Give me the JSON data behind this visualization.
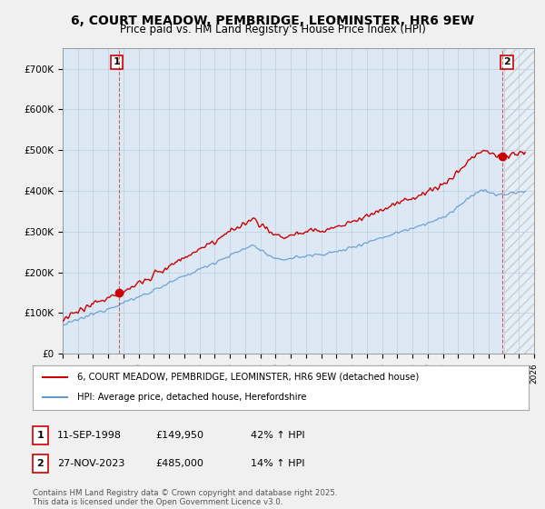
{
  "title": "6, COURT MEADOW, PEMBRIDGE, LEOMINSTER, HR6 9EW",
  "subtitle": "Price paid vs. HM Land Registry's House Price Index (HPI)",
  "legend_label1": "6, COURT MEADOW, PEMBRIDGE, LEOMINSTER, HR6 9EW (detached house)",
  "legend_label2": "HPI: Average price, detached house, Herefordshire",
  "annotation1_date": "11-SEP-1998",
  "annotation1_price": "£149,950",
  "annotation1_hpi": "42% ↑ HPI",
  "annotation2_date": "27-NOV-2023",
  "annotation2_price": "£485,000",
  "annotation2_hpi": "14% ↑ HPI",
  "footer": "Contains HM Land Registry data © Crown copyright and database right 2025.\nThis data is licensed under the Open Government Licence v3.0.",
  "sale1_year": 1998.72,
  "sale1_price": 149950,
  "sale2_year": 2023.9,
  "sale2_price": 485000,
  "background_color": "#f0f0f0",
  "plot_bg_color": "#dce9f5",
  "red_color": "#cc0000",
  "blue_color": "#6699cc",
  "ylim_min": 0,
  "ylim_max": 750000,
  "xlim_min": 1995,
  "xlim_max": 2026
}
